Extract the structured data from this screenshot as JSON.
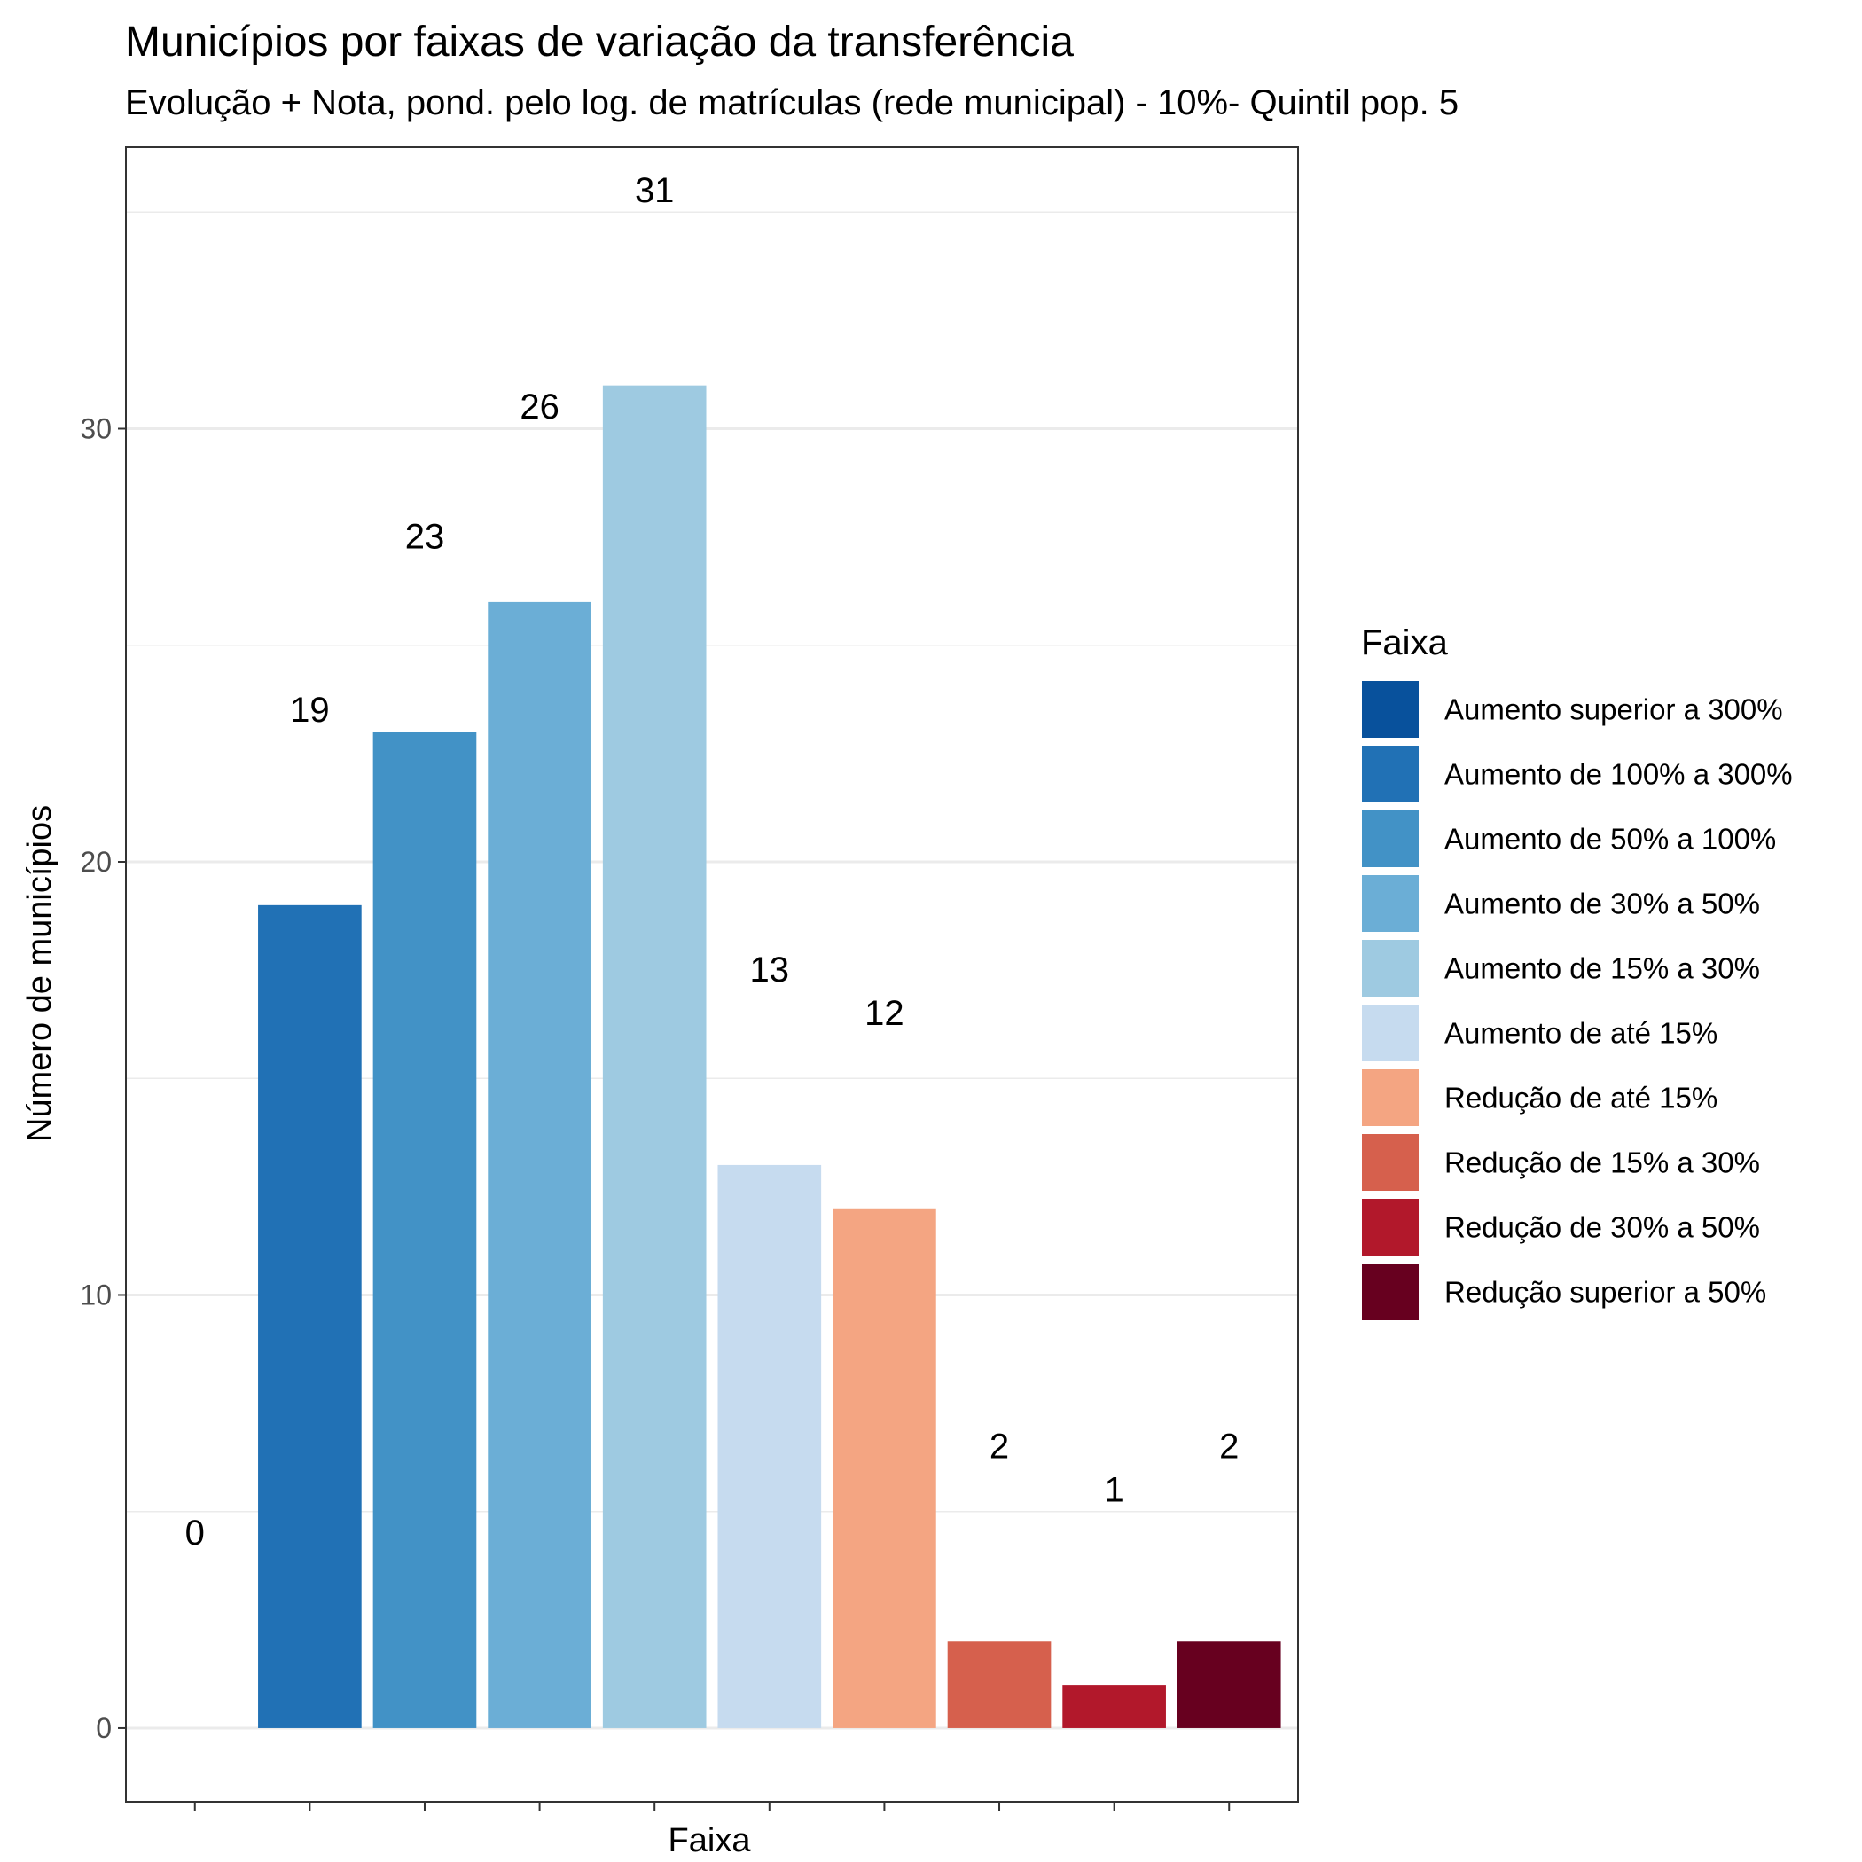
{
  "chart_data": {
    "type": "bar",
    "title": "Municípios por faixas de variação da transferência",
    "subtitle": "Evolução + Nota, pond. pelo log. de matrículas (rede municipal) - 10%- Quintil pop. 5",
    "xlabel": "Faixa",
    "ylabel": "Número de municípios",
    "ylim": [
      -1.7,
      36.5
    ],
    "yticks": [
      0,
      10,
      20,
      30
    ],
    "yticks_labels": [
      "0",
      "10",
      "20",
      "30"
    ],
    "minor_gridlines": [
      5,
      15,
      25,
      35
    ],
    "grid": true,
    "legend_title": "Faixa",
    "legend_position": "right",
    "categories": [
      "Aumento superior a 300%",
      "Aumento de 100% a 300%",
      "Aumento de 50% a 100%",
      "Aumento de 30% a 50%",
      "Aumento de 15% a 30%",
      "Aumento de até 15%",
      "Redução de até 15%",
      "Redução de 15% a 30%",
      "Redução de 30% a 50%",
      "Redução superior a 50%"
    ],
    "values": [
      0,
      19,
      23,
      26,
      31,
      13,
      12,
      2,
      1,
      2
    ],
    "labels": [
      "0",
      "19",
      "23",
      "26",
      "31",
      "13",
      "12",
      "2",
      "1",
      "2"
    ],
    "label_offset": 4.5,
    "colors": [
      "#08519c",
      "#2171b5",
      "#4292c6",
      "#6baed6",
      "#9ecae1",
      "#c6dbef",
      "#f4a582",
      "#d6604d",
      "#b2182b",
      "#67001f"
    ]
  }
}
